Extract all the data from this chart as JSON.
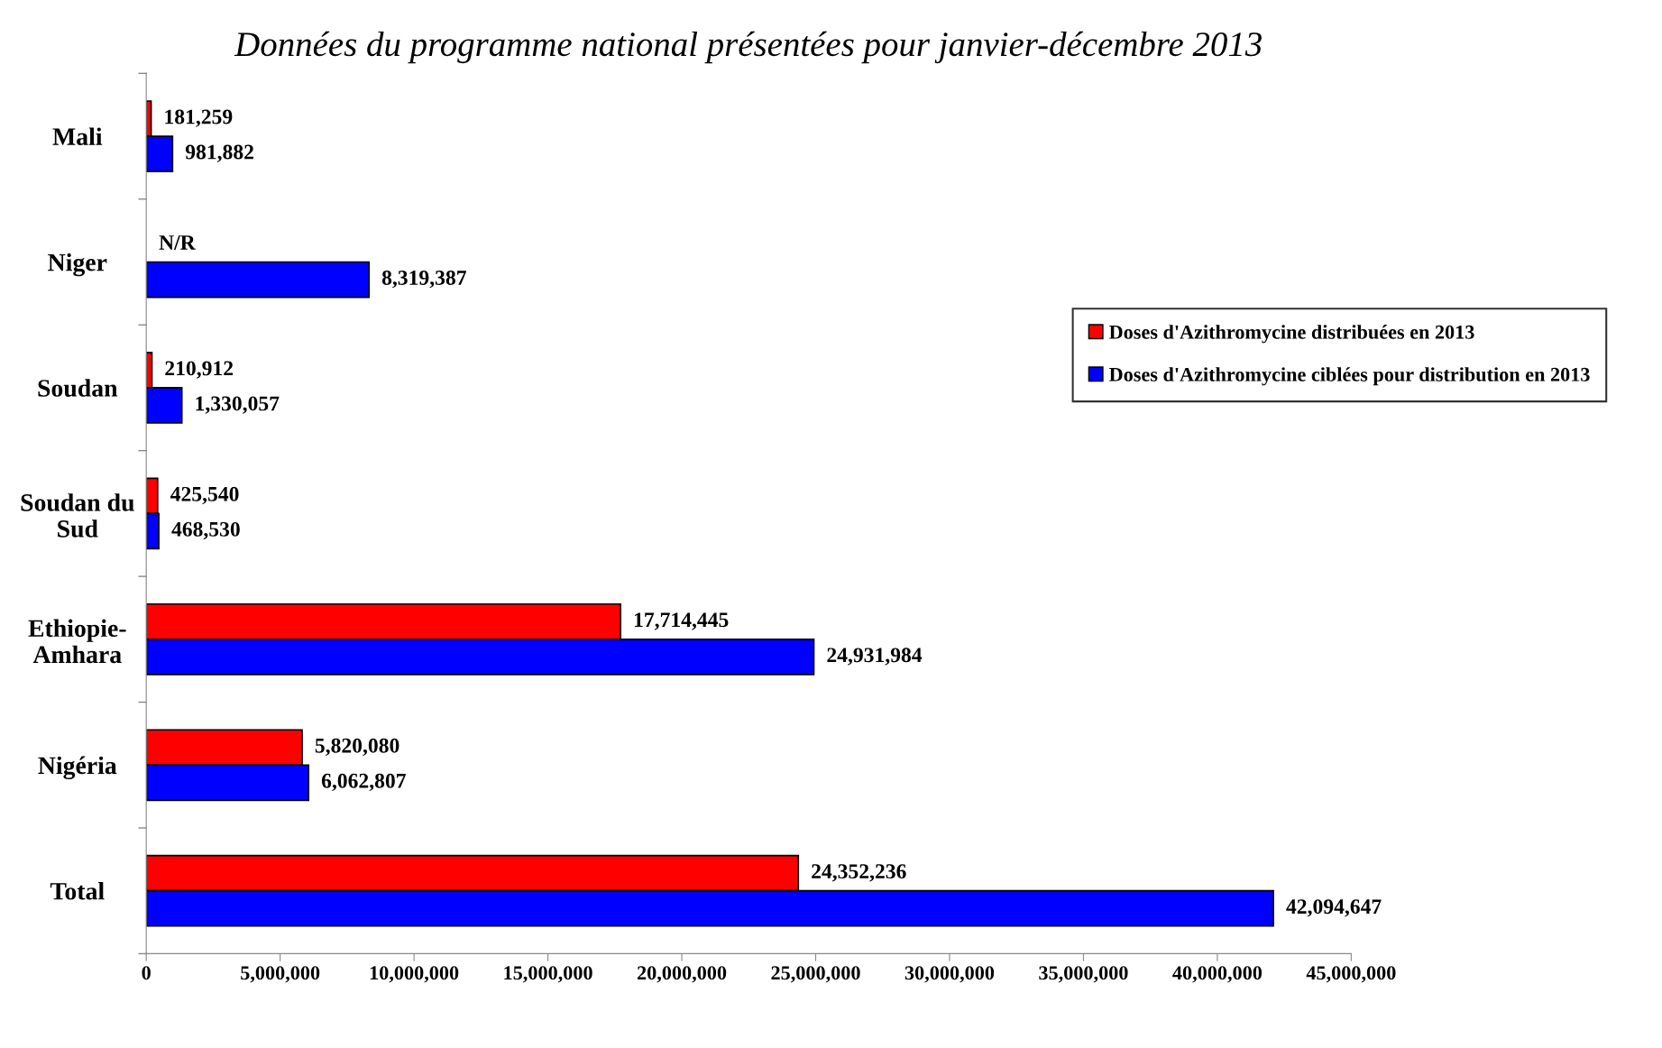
{
  "chart_data": {
    "type": "bar",
    "orientation": "horizontal",
    "title": "Données du programme national présentées pour janvier-décembre 2013",
    "categories": [
      "Mali",
      "Niger",
      "Soudan",
      "Soudan du\nSud",
      "Ethiopie-\nAmhara",
      "Nigéria",
      "Total"
    ],
    "series": [
      {
        "name": "Doses d'Azithromycine distribuées en 2013",
        "color": "#ff0000",
        "values": [
          181259,
          null,
          210912,
          425540,
          17714445,
          5820080,
          24352236
        ],
        "value_labels": [
          "181,259",
          "N/R",
          "210,912",
          "425,540",
          "17,714,445",
          "5,820,080",
          "24,352,236"
        ]
      },
      {
        "name": "Doses d'Azithromycine ciblées pour distribution en 2013",
        "color": "#0000ff",
        "values": [
          981882,
          8319387,
          1330057,
          468530,
          24931984,
          6062807,
          42094647
        ],
        "value_labels": [
          "981,882",
          "8,319,387",
          "1,330,057",
          "468,530",
          "24,931,984",
          "6,062,807",
          "42,094,647"
        ]
      }
    ],
    "xlim": [
      0,
      45000000
    ],
    "xticks": [
      0,
      {
        "value": 5000000,
        "label": "5,000,000"
      },
      {
        "value": 10000000,
        "label": "10,000,000"
      },
      {
        "value": 15000000,
        "label": "15,000,000"
      },
      {
        "value": 20000000,
        "label": "20,000,000"
      },
      {
        "value": 25000000,
        "label": "25,000,000"
      },
      {
        "value": 30000000,
        "label": "30,000,000"
      },
      {
        "value": 35000000,
        "label": "35,000,000"
      },
      {
        "value": 40000000,
        "label": "40,000,000"
      },
      {
        "value": 45000000,
        "label": "45,000,000"
      }
    ],
    "grid": false,
    "legend": "right"
  }
}
